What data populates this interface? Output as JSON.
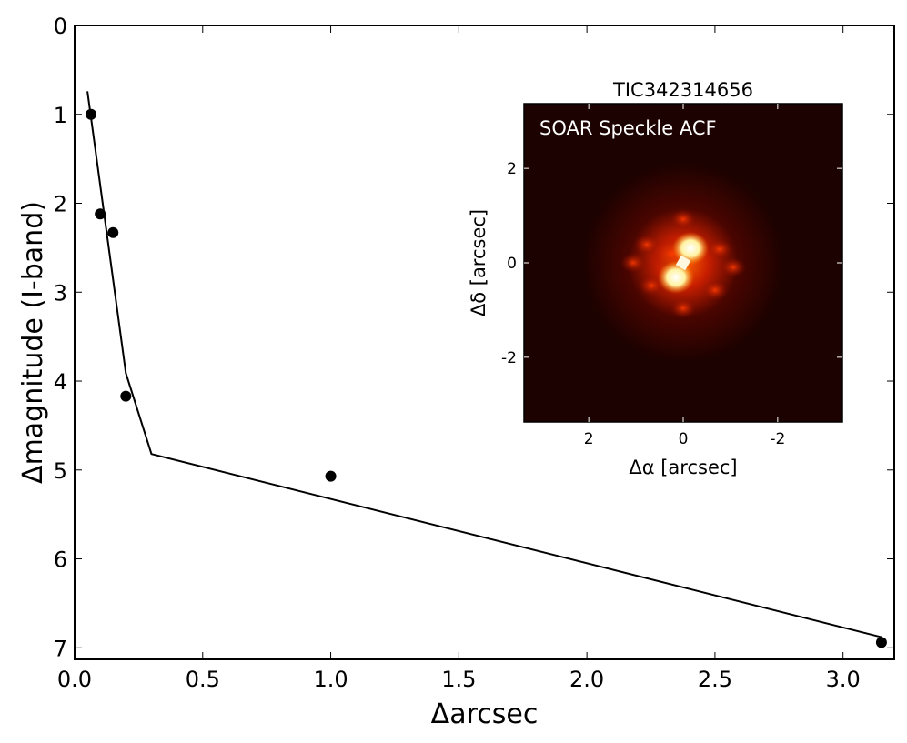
{
  "chart_data": [
    {
      "type": "scatter",
      "title": "",
      "xlabel": "Δarcsec",
      "ylabel": "Δmagnitude (I-band)",
      "xlim": [
        0,
        3.2
      ],
      "ylim": [
        7.13,
        0
      ],
      "y_inverted": true,
      "grid": false,
      "xticks": [
        "0.0",
        "0.5",
        "1.0",
        "1.5",
        "2.0",
        "2.5",
        "3.0"
      ],
      "yticks": [
        "0",
        "1",
        "2",
        "3",
        "4",
        "5",
        "6",
        "7"
      ],
      "points": {
        "x": [
          0.064,
          0.1,
          0.15,
          0.2,
          1.0,
          3.15
        ],
        "y": [
          1.0,
          2.12,
          2.33,
          4.17,
          5.07,
          6.94
        ],
        "color": "#000000"
      },
      "contrast_curve": {
        "x": [
          0.05,
          0.2,
          0.3,
          3.15
        ],
        "y": [
          0.74,
          3.91,
          4.82,
          6.88
        ],
        "color": "#000000"
      }
    },
    {
      "type": "heatmap",
      "title": "TIC342314656",
      "annotation": "SOAR Speckle ACF",
      "xlabel": "Δα [arcsec]",
      "ylabel": "Δδ [arcsec]",
      "xlim": [
        3.37,
        -3.37
      ],
      "ylim": [
        -3.37,
        3.37
      ],
      "xticks": [
        "2",
        "0",
        "-2"
      ],
      "yticks": [
        "2",
        "0",
        "-2"
      ],
      "colormap": "hot"
    }
  ]
}
